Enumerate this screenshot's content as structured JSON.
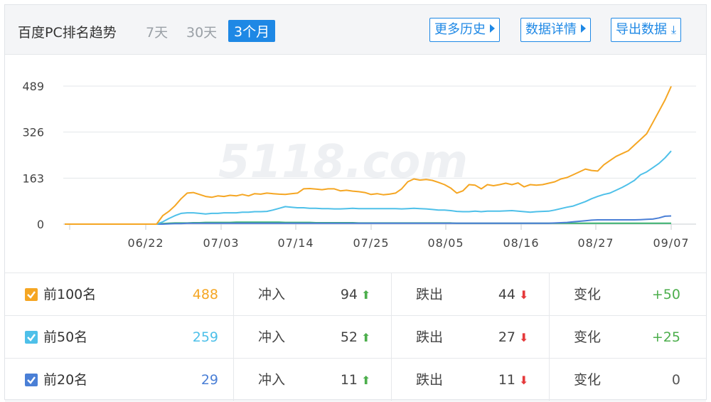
{
  "header": {
    "title": "百度PC排名趋势",
    "ranges": [
      "7天",
      "30天",
      "3个月"
    ],
    "active_range": "3个月",
    "more_history": "更多历史",
    "data_detail": "数据详情",
    "export": "导出数据"
  },
  "watermark": "5118.com",
  "chart_data": {
    "type": "line",
    "x_ticks": [
      "06/22",
      "07/03",
      "07/14",
      "07/25",
      "08/05",
      "08/16",
      "08/27",
      "09/07"
    ],
    "y_ticks": [
      0,
      163,
      326,
      489
    ],
    "ylim": [
      0,
      489
    ],
    "grid": true,
    "series": [
      {
        "name": "前100名",
        "color": "#f5a623",
        "values": [
          0,
          0,
          0,
          0,
          0,
          0,
          0,
          0,
          0,
          0,
          0,
          0,
          0,
          0,
          0,
          0,
          30,
          45,
          65,
          90,
          110,
          112,
          105,
          98,
          95,
          100,
          98,
          102,
          100,
          105,
          100,
          108,
          106,
          110,
          108,
          106,
          105,
          108,
          110,
          125,
          126,
          124,
          122,
          125,
          125,
          118,
          120,
          117,
          115,
          112,
          105,
          108,
          104,
          106,
          110,
          125,
          150,
          160,
          156,
          158,
          155,
          148,
          140,
          128,
          110,
          118,
          140,
          138,
          125,
          140,
          136,
          140,
          145,
          140,
          146,
          132,
          140,
          138,
          140,
          145,
          150,
          160,
          165,
          175,
          185,
          195,
          190,
          188,
          210,
          225,
          240,
          250,
          260,
          280,
          300,
          320,
          360,
          400,
          440,
          488
        ]
      },
      {
        "name": "前50名",
        "color": "#4ec0e9",
        "values": [
          0,
          0,
          0,
          0,
          0,
          0,
          0,
          0,
          0,
          0,
          0,
          0,
          0,
          0,
          0,
          0,
          8,
          20,
          30,
          38,
          40,
          40,
          38,
          36,
          38,
          38,
          40,
          40,
          40,
          42,
          42,
          44,
          44,
          45,
          50,
          56,
          62,
          60,
          58,
          58,
          56,
          56,
          55,
          55,
          54,
          54,
          55,
          56,
          55,
          55,
          55,
          55,
          55,
          55,
          55,
          54,
          55,
          56,
          55,
          54,
          52,
          50,
          50,
          48,
          45,
          44,
          44,
          46,
          44,
          46,
          46,
          46,
          47,
          48,
          46,
          44,
          42,
          44,
          45,
          46,
          50,
          55,
          60,
          64,
          72,
          80,
          90,
          98,
          105,
          110,
          120,
          130,
          142,
          155,
          175,
          185,
          200,
          215,
          235,
          259
        ]
      },
      {
        "name": "前20名",
        "color": "#4a7fd6",
        "values": [
          0,
          0,
          0,
          0,
          0,
          0,
          0,
          0,
          0,
          0,
          0,
          0,
          0,
          0,
          0,
          0,
          0,
          1,
          2,
          2,
          3,
          3,
          3,
          3,
          3,
          3,
          3,
          3,
          3,
          3,
          3,
          3,
          3,
          3,
          3,
          3,
          3,
          3,
          3,
          3,
          3,
          3,
          3,
          3,
          3,
          3,
          3,
          3,
          3,
          3,
          3,
          3,
          3,
          3,
          3,
          3,
          3,
          3,
          3,
          3,
          3,
          3,
          3,
          3,
          3,
          3,
          3,
          3,
          3,
          3,
          3,
          3,
          3,
          3,
          3,
          3,
          3,
          3,
          3,
          3,
          4,
          5,
          6,
          8,
          10,
          12,
          14,
          15,
          15,
          15,
          15,
          15,
          15,
          15,
          16,
          17,
          18,
          22,
          28,
          29
        ]
      },
      {
        "name": "",
        "color": "#3cb371",
        "values": [
          0,
          0,
          0,
          0,
          0,
          0,
          0,
          0,
          0,
          0,
          0,
          0,
          0,
          0,
          0,
          0,
          2,
          3,
          4,
          4,
          4,
          5,
          5,
          6,
          6,
          6,
          6,
          6,
          7,
          7,
          7,
          7,
          7,
          7,
          7,
          7,
          6,
          6,
          6,
          6,
          6,
          5,
          5,
          5,
          5,
          5,
          5,
          5,
          4,
          4,
          4,
          4,
          4,
          4,
          4,
          4,
          4,
          4,
          4,
          4,
          4,
          4,
          4,
          4,
          3,
          3,
          3,
          3,
          3,
          3,
          3,
          3,
          3,
          3,
          3,
          3,
          3,
          3,
          3,
          3,
          3,
          3,
          3,
          3,
          3,
          3,
          3,
          3,
          3,
          3,
          3,
          3,
          3,
          3,
          3,
          3,
          3,
          3,
          3,
          3
        ]
      }
    ]
  },
  "table": {
    "rows": [
      {
        "label": "前100名",
        "value": "488",
        "value_color": "#f5a623",
        "check_color": "#f5a623",
        "in_label": "冲入",
        "in": "94",
        "out_label": "跌出",
        "out": "44",
        "change_label": "变化",
        "change": "+50",
        "change_color": "#4cae4c"
      },
      {
        "label": "前50名",
        "value": "259",
        "value_color": "#4ec0e9",
        "check_color": "#4ec0e9",
        "in_label": "冲入",
        "in": "52",
        "out_label": "跌出",
        "out": "27",
        "change_label": "变化",
        "change": "+25",
        "change_color": "#4cae4c"
      },
      {
        "label": "前20名",
        "value": "29",
        "value_color": "#4a7fd6",
        "check_color": "#4a7fd6",
        "in_label": "冲入",
        "in": "11",
        "out_label": "跌出",
        "out": "11",
        "change_label": "变化",
        "change": "0",
        "change_color": "#555555"
      }
    ]
  }
}
